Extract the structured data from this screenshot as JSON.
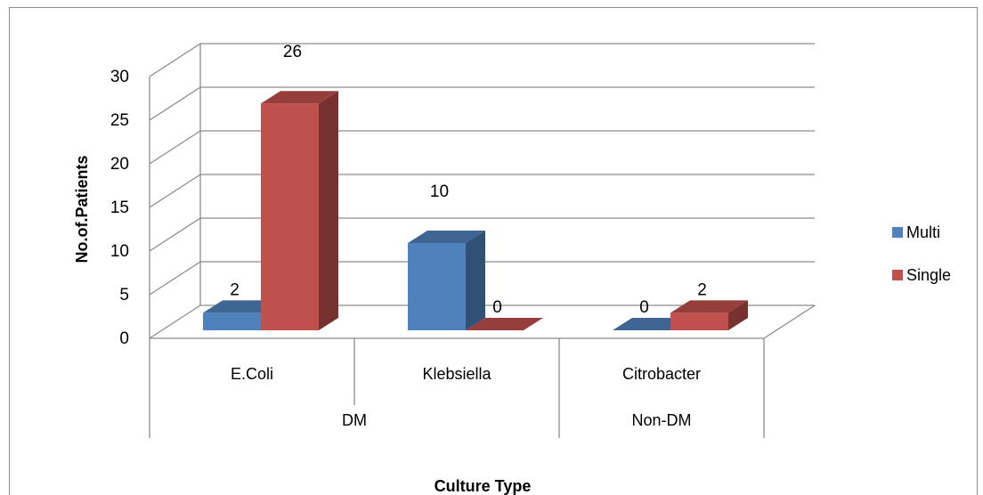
{
  "chart_data": {
    "type": "bar",
    "categories": [
      "E.Coli",
      "Klebsiella",
      "Citrobacter"
    ],
    "groups": [
      {
        "label": "DM",
        "categories": [
          "E.Coli",
          "Klebsiella"
        ]
      },
      {
        "label": "Non-DM",
        "categories": [
          "Citrobacter"
        ]
      }
    ],
    "series": [
      {
        "name": "Multi",
        "values": [
          2,
          10,
          0
        ],
        "color": "#4F81BD"
      },
      {
        "name": "Single",
        "values": [
          26,
          0,
          2
        ],
        "color": "#C0504D"
      }
    ],
    "title": "",
    "xlabel": "Culture Type",
    "ylabel": "No.of.Patients",
    "ylim": [
      0,
      30
    ],
    "yticks": [
      "0",
      "5",
      "10",
      "15",
      "20",
      "25",
      "30"
    ],
    "grid": true,
    "legend": "right",
    "three_d": true
  }
}
